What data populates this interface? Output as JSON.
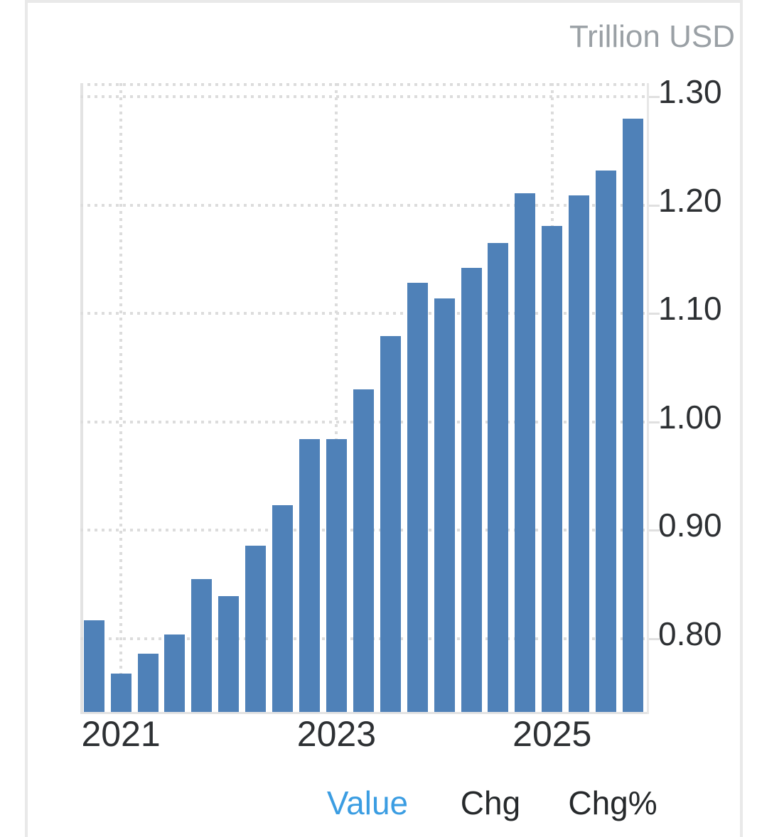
{
  "unit_label": "Trillion USD",
  "chart_data": {
    "type": "bar",
    "title": "",
    "xlabel": "",
    "ylabel": "Trillion USD",
    "categories": [
      "2020-Q4",
      "2021-Q1",
      "2021-Q2",
      "2021-Q3",
      "2021-Q4",
      "2022-Q1",
      "2022-Q2",
      "2022-Q3",
      "2022-Q4",
      "2023-Q1",
      "2023-Q2",
      "2023-Q3",
      "2023-Q4",
      "2024-Q1",
      "2024-Q2",
      "2024-Q3",
      "2024-Q4",
      "2025-Q1",
      "2025-Q2",
      "2025-Q3",
      "2025-Q4"
    ],
    "values": [
      0.817,
      0.768,
      0.786,
      0.804,
      0.855,
      0.839,
      0.886,
      0.923,
      0.984,
      0.984,
      1.03,
      1.079,
      1.128,
      1.114,
      1.142,
      1.165,
      1.211,
      1.181,
      1.209,
      1.232,
      1.28
    ],
    "y_ticks": [
      {
        "label": "1.30",
        "value": 1.3
      },
      {
        "label": "1.20",
        "value": 1.2
      },
      {
        "label": "1.10",
        "value": 1.1
      },
      {
        "label": "1.00",
        "value": 1.0
      },
      {
        "label": "0.90",
        "value": 0.9
      },
      {
        "label": "0.80",
        "value": 0.8
      }
    ],
    "x_ticks": [
      {
        "label": "2021",
        "category_index": 1
      },
      {
        "label": "2023",
        "category_index": 9
      },
      {
        "label": "2025",
        "category_index": 17
      }
    ],
    "ylim": [
      0.7305,
      1.3125
    ],
    "grid": "dotted",
    "legend_position": "none",
    "bar_color": "#4f81b8"
  },
  "tabs": [
    {
      "label": "Value",
      "active": true
    },
    {
      "label": "Chg",
      "active": false
    },
    {
      "label": "Chg%",
      "active": false
    }
  ],
  "colors": {
    "bar": "#4f81b8",
    "tab_active": "#3b9de2",
    "tab_inactive": "#26292b",
    "tick_text": "#2d3033",
    "unit_text": "#9aa0a5",
    "gridline": "#dcdcdc",
    "axis_line": "#e3e3e3",
    "card_border": "#e9e9e9"
  }
}
